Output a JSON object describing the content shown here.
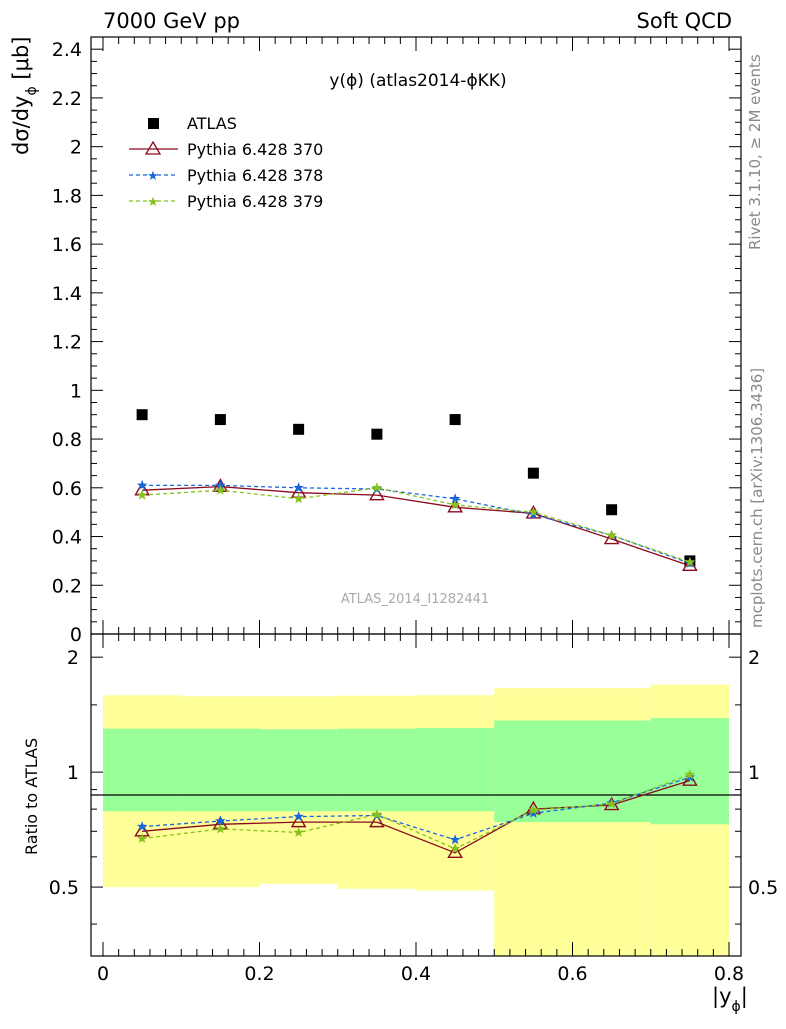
{
  "header": {
    "left": "7000 GeV pp",
    "right": "Soft QCD"
  },
  "side_text": {
    "rivet": "Rivet 3.1.10, ≥ 2M events",
    "mcplots": "mcplots.cern.ch [arXiv:1306.3436]"
  },
  "watermark": "ATLAS_2014_I1282441",
  "colors": {
    "atlas": "#000000",
    "p370": "#8b0a1e",
    "p378": "#1a66dd",
    "p379": "#86c21a",
    "band_outer": "#ffff99",
    "band_inner": "#99ff99"
  },
  "chart_data": [
    {
      "type": "scatter",
      "title": "y(ϕ) (atlas2014-ϕKK)",
      "ylabel": "dσ/dy_ϕ [μb]",
      "xlabel": "|y_ϕ|",
      "xlim": [
        0,
        0.8
      ],
      "ylim": [
        0,
        2.45
      ],
      "yticks": [
        "0",
        "0.2",
        "0.4",
        "0.6",
        "0.8",
        "1",
        "1.2",
        "1.4",
        "1.6",
        "1.8",
        "2",
        "2.2",
        "2.4"
      ],
      "legend_position": "top-left",
      "x": [
        0.05,
        0.15,
        0.25,
        0.35,
        0.45,
        0.55,
        0.65,
        0.75
      ],
      "series": [
        {
          "name": "ATLAS",
          "marker": "square",
          "values": [
            0.9,
            0.88,
            0.84,
            0.82,
            0.88,
            0.66,
            0.51,
            0.3
          ]
        },
        {
          "name": "Pythia 6.428 370",
          "marker": "triangle",
          "line": "solid",
          "values": [
            0.59,
            0.605,
            0.58,
            0.57,
            0.52,
            0.495,
            0.39,
            0.28
          ]
        },
        {
          "name": "Pythia 6.428 378",
          "marker": "star",
          "line": "dashed",
          "values": [
            0.61,
            0.61,
            0.6,
            0.595,
            0.555,
            0.49,
            0.405,
            0.29
          ]
        },
        {
          "name": "Pythia 6.428 379",
          "marker": "star",
          "line": "dashed",
          "values": [
            0.57,
            0.59,
            0.555,
            0.6,
            0.53,
            0.5,
            0.405,
            0.295
          ]
        }
      ]
    },
    {
      "type": "line",
      "ylabel": "Ratio to ATLAS",
      "xlabel": "|y_ϕ|",
      "xlim": [
        0,
        0.8
      ],
      "ylim": [
        0.33,
        2.3
      ],
      "yticks": [
        "0.5",
        "1",
        "2"
      ],
      "xticks": [
        "0",
        "0.2",
        "0.4",
        "0.6",
        "0.8"
      ],
      "x": [
        0.05,
        0.15,
        0.25,
        0.35,
        0.45,
        0.55,
        0.65,
        0.75
      ],
      "bins": [
        [
          0,
          0.1
        ],
        [
          0.1,
          0.2
        ],
        [
          0.2,
          0.3
        ],
        [
          0.3,
          0.4
        ],
        [
          0.4,
          0.5
        ],
        [
          0.5,
          0.6
        ],
        [
          0.6,
          0.7
        ],
        [
          0.7,
          0.8
        ]
      ],
      "band_outer": [
        [
          0.5,
          1.59
        ],
        [
          0.5,
          1.58
        ],
        [
          0.51,
          1.58
        ],
        [
          0.495,
          1.585
        ],
        [
          0.49,
          1.59
        ],
        [
          0.3,
          1.66
        ],
        [
          0.3,
          1.66
        ],
        [
          0.3,
          1.695
        ]
      ],
      "band_inner": [
        [
          0.79,
          1.3
        ],
        [
          0.79,
          1.3
        ],
        [
          0.79,
          1.295
        ],
        [
          0.79,
          1.3
        ],
        [
          0.79,
          1.305
        ],
        [
          0.74,
          1.365
        ],
        [
          0.74,
          1.365
        ],
        [
          0.73,
          1.385
        ]
      ],
      "series": [
        {
          "name": "Pythia 6.428 370",
          "values": [
            0.7,
            0.73,
            0.74,
            0.74,
            0.615,
            0.8,
            0.82,
            0.95
          ]
        },
        {
          "name": "Pythia 6.428 378",
          "values": [
            0.72,
            0.745,
            0.765,
            0.77,
            0.665,
            0.78,
            0.83,
            0.97
          ]
        },
        {
          "name": "Pythia 6.428 379",
          "values": [
            0.67,
            0.71,
            0.695,
            0.775,
            0.63,
            0.795,
            0.825,
            0.985
          ]
        }
      ]
    }
  ]
}
